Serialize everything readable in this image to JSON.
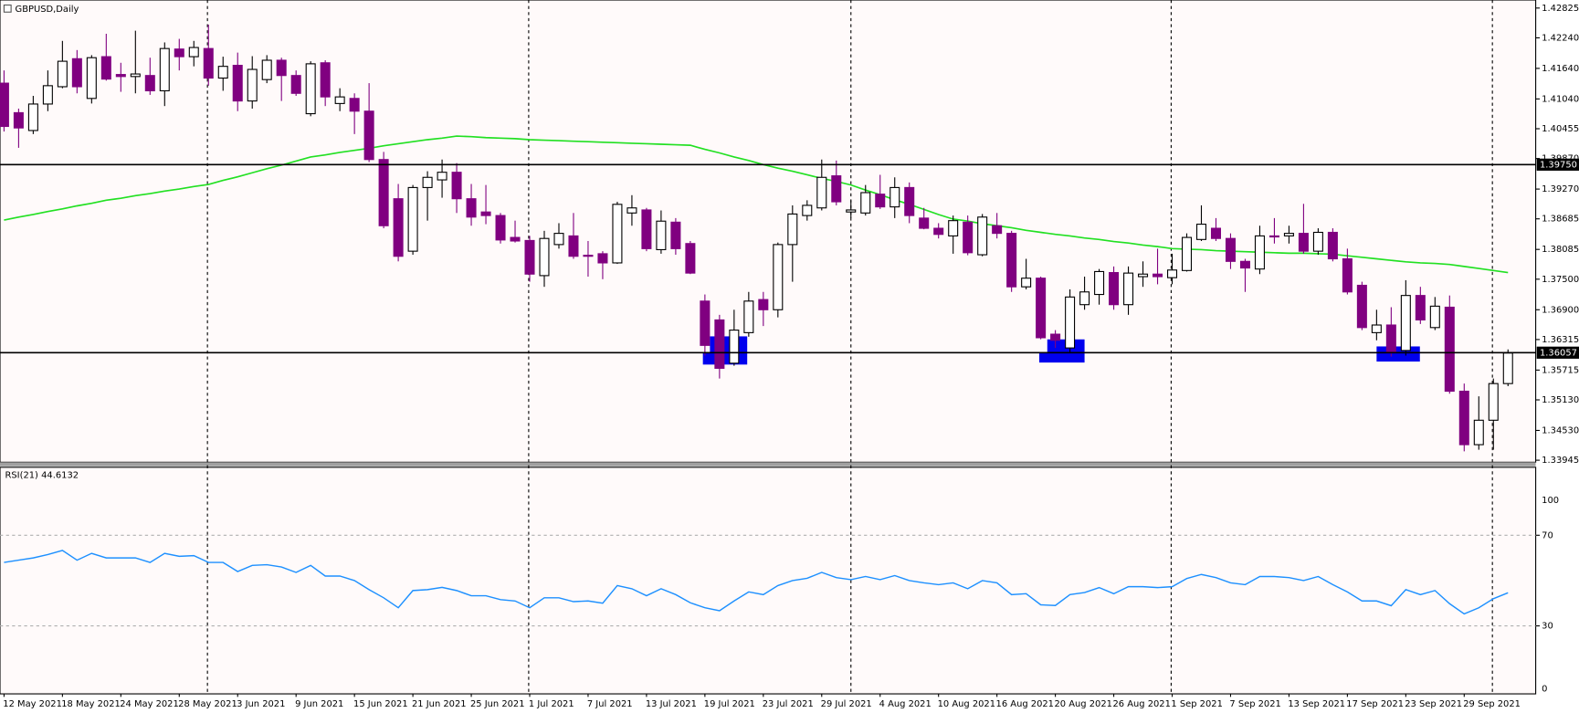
{
  "chart_data": [
    {
      "type": "candlestick",
      "title": "GBPUSD,Daily",
      "categories": [
        "12 May 2021",
        null,
        null,
        null,
        "18 May 2021",
        null,
        null,
        null,
        "24 May 2021",
        null,
        null,
        null,
        "28 May 2021",
        null,
        null,
        null,
        "3 Jun 2021",
        null,
        null,
        null,
        "9 Jun 2021",
        null,
        null,
        null,
        "15 Jun 2021",
        null,
        null,
        null,
        "21 Jun 2021",
        null,
        null,
        null,
        "25 Jun 2021",
        null,
        null,
        null,
        "1 Jul 2021",
        null,
        null,
        null,
        "7 Jul 2021",
        null,
        null,
        null,
        "13 Jul 2021",
        null,
        null,
        null,
        "19 Jul 2021",
        null,
        null,
        null,
        "23 Jul 2021",
        null,
        null,
        null,
        "29 Jul 2021",
        null,
        null,
        null,
        "4 Aug 2021",
        null,
        null,
        null,
        "10 Aug 2021",
        null,
        null,
        null,
        "16 Aug 2021",
        null,
        null,
        null,
        "20 Aug 2021",
        null,
        null,
        null,
        "26 Aug 2021",
        null,
        null,
        null,
        "1 Sep 2021",
        null,
        null,
        null,
        "7 Sep 2021",
        null,
        null,
        null,
        "13 Sep 2021",
        null,
        null,
        null,
        "17 Sep 2021",
        null,
        null,
        null,
        "23 Sep 2021",
        null,
        null,
        null,
        "29 Sep 2021",
        null,
        null,
        null
      ],
      "open": [
        1.4135,
        1.4077,
        1.4042,
        1.4094,
        1.4128,
        1.4183,
        1.4105,
        1.4187,
        1.4152,
        1.4148,
        1.415,
        1.412,
        1.4202,
        1.4187,
        1.4203,
        1.4145,
        1.417,
        1.41,
        1.4142,
        1.418,
        1.415,
        1.4075,
        1.4175,
        1.4095,
        1.4105,
        1.408,
        1.3985,
        1.3908,
        1.3805,
        1.393,
        1.3945,
        1.396,
        1.3908,
        1.3882,
        1.3875,
        1.3832,
        1.3826,
        1.3757,
        1.3818,
        1.3835,
        1.3797,
        1.38,
        1.3782,
        1.388,
        1.3886,
        1.3808,
        1.3862,
        1.382,
        1.3707,
        1.367,
        1.3585,
        1.3645,
        1.371,
        1.369,
        1.3818,
        1.3875,
        1.389,
        1.3953,
        1.3882,
        1.388,
        1.3917,
        1.3892,
        1.393,
        1.387,
        1.385,
        1.3835,
        1.3862,
        1.3798,
        1.3855,
        1.384,
        1.3735,
        1.3752,
        1.3642,
        1.3615,
        1.37,
        1.372,
        1.3763,
        1.37,
        1.3755,
        1.376,
        1.3753,
        1.3767,
        1.3828,
        1.385,
        1.383,
        1.3785,
        1.377,
        1.3835,
        1.3835,
        1.384,
        1.3805,
        1.3842,
        1.379,
        1.3738,
        1.3645,
        1.366,
        1.361,
        1.3718,
        1.3655,
        1.3695,
        1.353,
        1.3425,
        1.3473,
        1.3545
      ],
      "high": [
        1.416,
        1.4085,
        1.411,
        1.416,
        1.4218,
        1.42,
        1.419,
        1.4232,
        1.4175,
        1.4238,
        1.4185,
        1.4215,
        1.4222,
        1.4218,
        1.425,
        1.4187,
        1.4195,
        1.4188,
        1.419,
        1.4185,
        1.416,
        1.4178,
        1.418,
        1.4125,
        1.4115,
        1.4135,
        1.4,
        1.3937,
        1.3935,
        1.3962,
        1.3985,
        1.3978,
        1.3937,
        1.3935,
        1.388,
        1.3865,
        1.3835,
        1.3845,
        1.386,
        1.388,
        1.3825,
        1.3805,
        1.3902,
        1.3915,
        1.389,
        1.3885,
        1.387,
        1.3825,
        1.372,
        1.368,
        1.369,
        1.3725,
        1.3725,
        1.3822,
        1.3895,
        1.3905,
        1.3985,
        1.3983,
        1.3905,
        1.3935,
        1.3955,
        1.395,
        1.394,
        1.389,
        1.386,
        1.3875,
        1.3875,
        1.3878,
        1.388,
        1.3845,
        1.379,
        1.3755,
        1.365,
        1.373,
        1.3755,
        1.377,
        1.3775,
        1.3775,
        1.3785,
        1.381,
        1.38,
        1.384,
        1.3895,
        1.387,
        1.384,
        1.379,
        1.3855,
        1.387,
        1.3855,
        1.3898,
        1.385,
        1.385,
        1.381,
        1.3745,
        1.369,
        1.3695,
        1.3748,
        1.3735,
        1.3715,
        1.3718,
        1.3545,
        1.352,
        1.3555,
        1.3612
      ],
      "low": [
        1.404,
        1.4008,
        1.4035,
        1.408,
        1.4125,
        1.4115,
        1.4095,
        1.414,
        1.4118,
        1.4115,
        1.4112,
        1.409,
        1.416,
        1.4168,
        1.413,
        1.412,
        1.408,
        1.4085,
        1.4135,
        1.41,
        1.411,
        1.407,
        1.409,
        1.408,
        1.4035,
        1.398,
        1.385,
        1.3785,
        1.3798,
        1.3865,
        1.391,
        1.388,
        1.3855,
        1.3858,
        1.382,
        1.3822,
        1.3745,
        1.3735,
        1.381,
        1.379,
        1.3755,
        1.375,
        1.378,
        1.3855,
        1.3805,
        1.38,
        1.3798,
        1.376,
        1.36,
        1.3555,
        1.358,
        1.3637,
        1.3658,
        1.3675,
        1.3745,
        1.3865,
        1.3885,
        1.3895,
        1.387,
        1.3875,
        1.3888,
        1.387,
        1.386,
        1.3848,
        1.383,
        1.38,
        1.3797,
        1.3795,
        1.383,
        1.3725,
        1.373,
        1.3632,
        1.3615,
        1.3605,
        1.369,
        1.37,
        1.369,
        1.368,
        1.3735,
        1.374,
        1.374,
        1.3765,
        1.3825,
        1.3825,
        1.377,
        1.3725,
        1.376,
        1.382,
        1.382,
        1.38,
        1.3798,
        1.3785,
        1.372,
        1.365,
        1.363,
        1.3598,
        1.36,
        1.3662,
        1.365,
        1.3525,
        1.3412,
        1.3415,
        1.3415,
        1.354
      ],
      "close": [
        1.405,
        1.4047,
        1.4094,
        1.413,
        1.4178,
        1.4128,
        1.4185,
        1.4143,
        1.4148,
        1.4153,
        1.412,
        1.4203,
        1.4187,
        1.4205,
        1.4145,
        1.4168,
        1.41,
        1.4162,
        1.418,
        1.415,
        1.4115,
        1.4173,
        1.4108,
        1.4108,
        1.408,
        1.3985,
        1.3855,
        1.3795,
        1.393,
        1.395,
        1.396,
        1.3908,
        1.3872,
        1.3875,
        1.3827,
        1.3825,
        1.376,
        1.383,
        1.384,
        1.3795,
        1.3795,
        1.3782,
        1.3897,
        1.389,
        1.381,
        1.3864,
        1.381,
        1.3762,
        1.362,
        1.3575,
        1.365,
        1.3707,
        1.369,
        1.3818,
        1.3878,
        1.3895,
        1.395,
        1.3902,
        1.3886,
        1.392,
        1.3892,
        1.393,
        1.3875,
        1.385,
        1.3838,
        1.3865,
        1.3802,
        1.3872,
        1.384,
        1.3735,
        1.3752,
        1.3635,
        1.363,
        1.3715,
        1.3725,
        1.3765,
        1.37,
        1.3762,
        1.376,
        1.3755,
        1.3768,
        1.3832,
        1.3858,
        1.383,
        1.3785,
        1.3772,
        1.3835,
        1.3833,
        1.384,
        1.3805,
        1.3842,
        1.379,
        1.3725,
        1.3655,
        1.366,
        1.3607,
        1.3718,
        1.367,
        1.3697,
        1.353,
        1.3425,
        1.3473,
        1.3545,
        1.3605
      ],
      "up_color": "#ffffff",
      "down_color": "#800080",
      "moving_average": {
        "color": "#22e022",
        "values": [
          1.3866,
          1.3872,
          1.3877,
          1.3883,
          1.3888,
          1.3894,
          1.3899,
          1.3905,
          1.3909,
          1.3914,
          1.3918,
          1.3923,
          1.3927,
          1.3932,
          1.3936,
          1.3944,
          1.3951,
          1.3959,
          1.3967,
          1.3974,
          1.3982,
          1.399,
          1.3994,
          1.3999,
          1.4003,
          1.4007,
          1.4012,
          1.4016,
          1.402,
          1.4024,
          1.4027,
          1.4031,
          1.403,
          1.4028,
          1.4027,
          1.4026,
          1.4024,
          1.4023,
          1.4022,
          1.4021,
          1.402,
          1.4019,
          1.4018,
          1.4017,
          1.4016,
          1.4015,
          1.4014,
          1.4013,
          1.4005,
          1.3998,
          1.399,
          1.3983,
          1.3975,
          1.3968,
          1.3962,
          1.3955,
          1.3948,
          1.3942,
          1.3935,
          1.3925,
          1.3916,
          1.3906,
          1.3897,
          1.3887,
          1.3877,
          1.3868,
          1.3864,
          1.3859,
          1.3855,
          1.3851,
          1.3846,
          1.3842,
          1.3838,
          1.3835,
          1.3831,
          1.3828,
          1.3824,
          1.3821,
          1.3817,
          1.3814,
          1.381,
          1.3809,
          1.3808,
          1.3806,
          1.3805,
          1.3804,
          1.3803,
          1.3802,
          1.3801,
          1.3801,
          1.38,
          1.3799,
          1.3796,
          1.3793,
          1.379,
          1.3787,
          1.3784,
          1.3782,
          1.3781,
          1.3779,
          1.3775,
          1.3771,
          1.3767,
          1.3763
        ]
      },
      "hlines": [
        {
          "value": 1.3975,
          "label": "1.39750"
        },
        {
          "value": 1.36057,
          "label": "1.36057"
        }
      ],
      "ylim": [
        1.33905,
        1.42983
      ],
      "yticks": [
        {
          "value": 1.42825,
          "label": "1.42825"
        },
        {
          "value": 1.4224,
          "label": "1.42240"
        },
        {
          "value": 1.4164,
          "label": "1.41640"
        },
        {
          "value": 1.4104,
          "label": "1.41040"
        },
        {
          "value": 1.40455,
          "label": "1.40455"
        },
        {
          "value": 1.3987,
          "label": "1.39870"
        },
        {
          "value": 1.3927,
          "label": "1.39270"
        },
        {
          "value": 1.38685,
          "label": "1.38685"
        },
        {
          "value": 1.38085,
          "label": "1.38085"
        },
        {
          "value": 1.375,
          "label": "1.37500"
        },
        {
          "value": 1.369,
          "label": "1.36900"
        },
        {
          "value": 1.36315,
          "label": "1.36315"
        },
        {
          "value": 1.35715,
          "label": "1.35715"
        },
        {
          "value": 1.3513,
          "label": "1.35130"
        },
        {
          "value": 1.3453,
          "label": "1.34530"
        },
        {
          "value": 1.33945,
          "label": "1.33945"
        }
      ]
    },
    {
      "type": "line",
      "title": "RSI(21)",
      "series": [
        {
          "color": "#1e90ff",
          "values": [
            58,
            59,
            60,
            61.5,
            63.3,
            59,
            62,
            60,
            60,
            60,
            58,
            62,
            60.7,
            61,
            58,
            58,
            54,
            56.7,
            57,
            56,
            53.6,
            56.7,
            52,
            52,
            50,
            46,
            42.4,
            38,
            45.6,
            46,
            47,
            45.6,
            43.3,
            43.3,
            41.6,
            41,
            38,
            42.4,
            42.4,
            40.7,
            41,
            40,
            47.8,
            46.4,
            43.3,
            46.4,
            43.8,
            40.2,
            38,
            36.7,
            41,
            45,
            43.8,
            47.8,
            50,
            51,
            53.6,
            51.3,
            50.4,
            51.8,
            50.4,
            52.2,
            50,
            49,
            48.2,
            49,
            46.4,
            50,
            49,
            43.8,
            44.2,
            39.3,
            39,
            43.8,
            44.7,
            46.9,
            44.2,
            47.3,
            47.3,
            46.9,
            47.3,
            50.9,
            52.7,
            51.3,
            49,
            48.2,
            51.8,
            51.8,
            51.3,
            50,
            51.8,
            48.2,
            45,
            41,
            41,
            38.9,
            46,
            43.8,
            45.6,
            39.8,
            35.3,
            38,
            42,
            44.6132
          ]
        }
      ],
      "ylim": [
        0,
        100
      ],
      "yticks": [
        0,
        30,
        70,
        100
      ]
    }
  ]
}
